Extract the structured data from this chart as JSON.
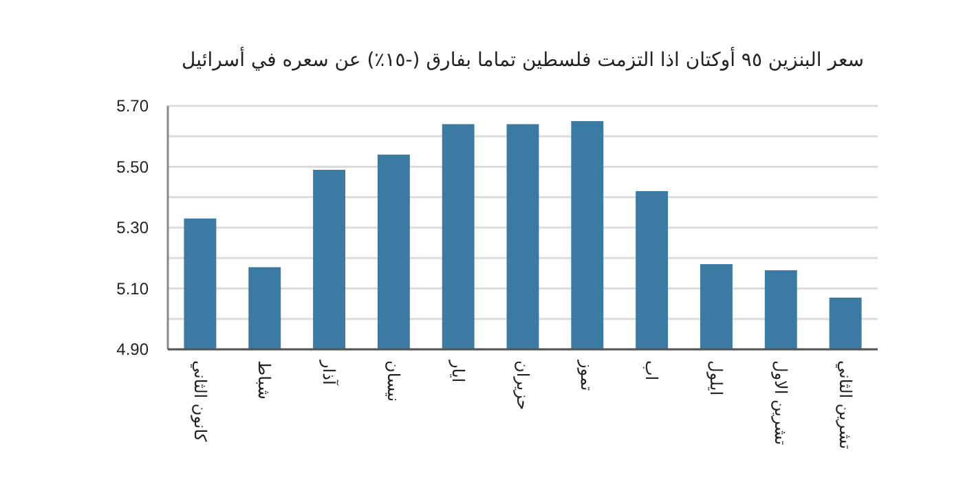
{
  "chart_data": {
    "type": "bar",
    "title": "سعر البنزين ٩٥ أوكتان اذا التزمت فلسطين تماما بفارق (-١٥٪) عن سعره في أسرائيل",
    "categories": [
      "كانون الثاني",
      "شباط",
      "آذار",
      "نيسان",
      "ايار",
      "حزيران",
      "تموز",
      "اب",
      "ايلول",
      "تشرين الاول",
      "تشرين الثاني"
    ],
    "values": [
      5.33,
      5.17,
      5.49,
      5.54,
      5.64,
      5.64,
      5.65,
      5.42,
      5.18,
      5.16,
      5.07
    ],
    "color": "#3b7ba3",
    "ylim": [
      4.9,
      5.7
    ],
    "yticks": [
      {
        "value": 4.9,
        "label": "4.90"
      },
      {
        "value": 5.0,
        "label": null
      },
      {
        "value": 5.1,
        "label": "5.10"
      },
      {
        "value": 5.2,
        "label": null
      },
      {
        "value": 5.3,
        "label": "5.30"
      },
      {
        "value": 5.4,
        "label": null
      },
      {
        "value": 5.5,
        "label": "5.50"
      },
      {
        "value": 5.6,
        "label": null
      },
      {
        "value": 5.7,
        "label": "5.70"
      }
    ],
    "grid": "y"
  }
}
